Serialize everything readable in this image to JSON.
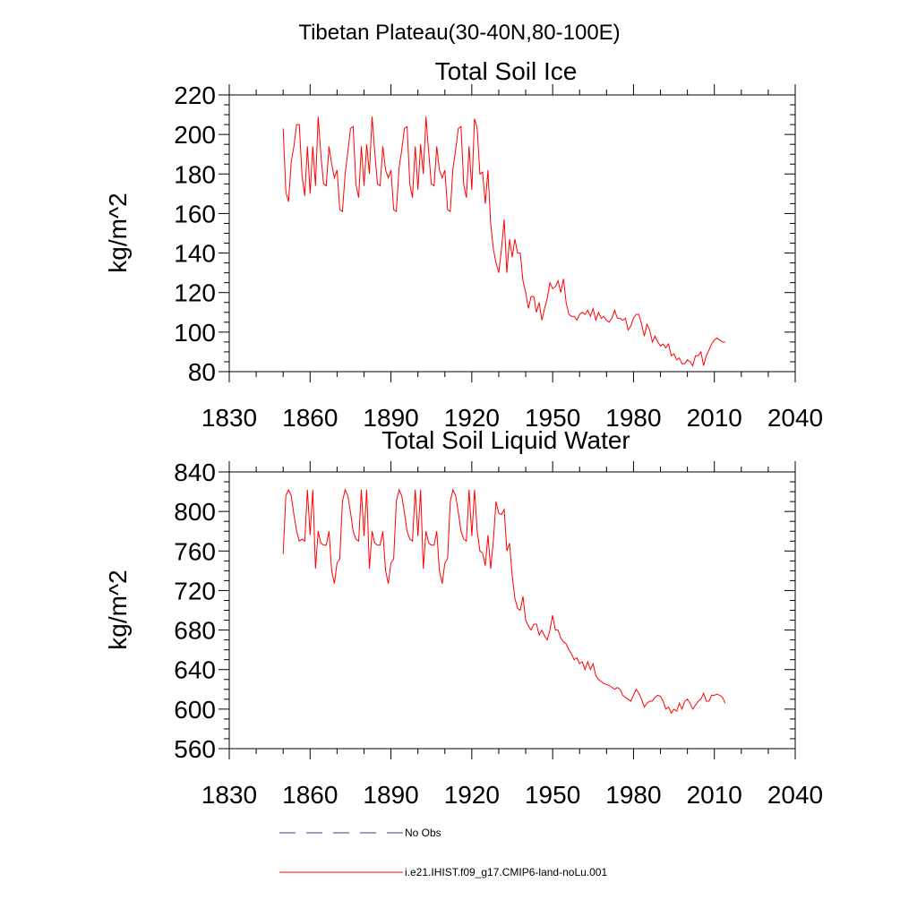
{
  "figure": {
    "main_title": "Tibetan Plateau(30-40N,80-100E)"
  },
  "legend": {
    "placement": "bottom",
    "entries": [
      {
        "label": "No Obs",
        "color": "#3b3b8f",
        "dash": "dashed"
      },
      {
        "label": "i.e21.IHIST.f09_g17.CMIP6-land-noLu.001",
        "color": "#ff0000",
        "dash": "solid"
      }
    ]
  },
  "chart_data": [
    {
      "type": "line",
      "title": "Total Soil Ice",
      "xlabel": "",
      "ylabel": "kg/m^2",
      "xlim": [
        1830,
        2040
      ],
      "ylim": [
        80,
        220
      ],
      "xticks": [
        "1830",
        "1860",
        "1890",
        "1920",
        "1950",
        "1980",
        "2010",
        "2040"
      ],
      "yticks": [
        "80",
        "100",
        "120",
        "140",
        "160",
        "180",
        "200",
        "220"
      ],
      "grid": false,
      "series": [
        {
          "name": "i.e21.IHIST.f09_g17.CMIP6-land-noLu.001",
          "color": "#ff0000",
          "x": [
            1850,
            1851,
            1852,
            1853,
            1854,
            1855,
            1856,
            1857,
            1858,
            1859,
            1860,
            1861,
            1862,
            1863,
            1864,
            1865,
            1866,
            1867,
            1868,
            1869,
            1870,
            1871,
            1872,
            1873,
            1874,
            1875,
            1876,
            1877,
            1878,
            1879,
            1880,
            1881,
            1882,
            1883,
            1884,
            1885,
            1886,
            1887,
            1888,
            1889,
            1890,
            1891,
            1892,
            1893,
            1894,
            1895,
            1896,
            1897,
            1898,
            1899,
            1900,
            1901,
            1902,
            1903,
            1904,
            1905,
            1906,
            1907,
            1908,
            1909,
            1910,
            1911,
            1912,
            1913,
            1914,
            1915,
            1916,
            1917,
            1918,
            1919,
            1920,
            1921,
            1922,
            1923,
            1924,
            1925,
            1926,
            1927,
            1928,
            1929,
            1930,
            1931,
            1932,
            1933,
            1934,
            1935,
            1936,
            1937,
            1938,
            1939,
            1940,
            1941,
            1942,
            1943,
            1944,
            1945,
            1946,
            1947,
            1948,
            1949,
            1950,
            1951,
            1952,
            1953,
            1954,
            1955,
            1956,
            1957,
            1958,
            1959,
            1960,
            1961,
            1962,
            1963,
            1964,
            1965,
            1966,
            1967,
            1968,
            1969,
            1970,
            1971,
            1972,
            1973,
            1974,
            1975,
            1976,
            1977,
            1978,
            1979,
            1980,
            1981,
            1982,
            1983,
            1984,
            1985,
            1986,
            1987,
            1988,
            1989,
            1990,
            1991,
            1992,
            1993,
            1994,
            1995,
            1996,
            1997,
            1998,
            1999,
            2000,
            2001,
            2002,
            2003,
            2004,
            2005,
            2006,
            2007,
            2008,
            2009,
            2010,
            2011,
            2012,
            2013,
            2014
          ],
          "values": [
            203,
            171,
            166,
            186,
            194,
            205,
            205,
            179,
            169,
            194,
            170,
            194,
            174,
            209,
            190,
            175,
            174,
            194,
            185,
            178,
            182,
            162,
            161,
            180,
            191,
            203,
            204,
            175,
            168,
            194,
            174,
            195,
            180,
            209,
            191,
            175,
            174,
            194,
            182,
            178,
            182,
            162,
            161,
            183,
            192,
            203,
            204,
            175,
            168,
            194,
            172,
            195,
            180,
            209,
            191,
            175,
            174,
            194,
            182,
            178,
            182,
            162,
            161,
            183,
            192,
            203,
            204,
            175,
            168,
            194,
            172,
            208,
            203,
            180,
            181,
            165,
            182,
            155,
            142,
            135,
            130,
            142,
            157,
            130,
            147,
            138,
            147,
            140,
            140,
            126,
            120,
            112,
            118,
            118,
            110,
            115,
            106,
            112,
            117,
            125,
            122,
            123,
            126,
            120,
            127,
            115,
            109,
            108,
            108,
            106,
            109,
            110,
            109,
            111,
            108,
            112,
            106,
            110,
            107,
            108,
            106,
            105,
            107,
            111,
            107,
            107,
            106,
            107,
            101,
            103,
            107,
            109,
            109,
            104,
            98,
            104,
            101,
            95,
            98,
            95,
            93,
            94,
            92,
            94,
            88,
            89,
            86,
            87,
            84,
            84,
            86,
            85,
            83,
            88,
            88,
            90,
            83,
            88,
            91,
            94,
            96,
            97,
            96,
            95,
            95
          ]
        }
      ]
    },
    {
      "type": "line",
      "title": "Total Soil Liquid Water",
      "xlabel": "",
      "ylabel": "kg/m^2",
      "xlim": [
        1830,
        2040
      ],
      "ylim": [
        560,
        840
      ],
      "xticks": [
        "1830",
        "1860",
        "1890",
        "1920",
        "1950",
        "1980",
        "2010",
        "2040"
      ],
      "yticks": [
        "560",
        "600",
        "640",
        "680",
        "720",
        "760",
        "800",
        "840"
      ],
      "grid": false,
      "series": [
        {
          "name": "i.e21.IHIST.f09_g17.CMIP6-land-noLu.001",
          "color": "#ff0000",
          "x": [
            1850,
            1851,
            1852,
            1853,
            1854,
            1855,
            1856,
            1857,
            1858,
            1859,
            1860,
            1861,
            1862,
            1863,
            1864,
            1865,
            1866,
            1867,
            1868,
            1869,
            1870,
            1871,
            1872,
            1873,
            1874,
            1875,
            1876,
            1877,
            1878,
            1879,
            1880,
            1881,
            1882,
            1883,
            1884,
            1885,
            1886,
            1887,
            1888,
            1889,
            1890,
            1891,
            1892,
            1893,
            1894,
            1895,
            1896,
            1897,
            1898,
            1899,
            1900,
            1901,
            1902,
            1903,
            1904,
            1905,
            1906,
            1907,
            1908,
            1909,
            1910,
            1911,
            1912,
            1913,
            1914,
            1915,
            1916,
            1917,
            1918,
            1919,
            1920,
            1921,
            1922,
            1923,
            1924,
            1925,
            1926,
            1927,
            1928,
            1929,
            1930,
            1931,
            1932,
            1933,
            1934,
            1935,
            1936,
            1937,
            1938,
            1939,
            1940,
            1941,
            1942,
            1943,
            1944,
            1945,
            1946,
            1947,
            1948,
            1949,
            1950,
            1951,
            1952,
            1953,
            1954,
            1955,
            1956,
            1957,
            1958,
            1959,
            1960,
            1961,
            1962,
            1963,
            1964,
            1965,
            1966,
            1967,
            1968,
            1969,
            1970,
            1971,
            1972,
            1973,
            1974,
            1975,
            1976,
            1977,
            1978,
            1979,
            1980,
            1981,
            1982,
            1983,
            1984,
            1985,
            1986,
            1987,
            1988,
            1989,
            1990,
            1991,
            1992,
            1993,
            1994,
            1995,
            1996,
            1997,
            1998,
            1999,
            2000,
            2001,
            2002,
            2003,
            2004,
            2005,
            2006,
            2007,
            2008,
            2009,
            2010,
            2011,
            2012,
            2013,
            2014
          ],
          "values": [
            757,
            816,
            822,
            816,
            797,
            780,
            770,
            772,
            770,
            822,
            776,
            822,
            742,
            780,
            768,
            766,
            766,
            780,
            740,
            727,
            748,
            752,
            810,
            822,
            816,
            799,
            780,
            772,
            770,
            822,
            775,
            822,
            742,
            780,
            768,
            766,
            766,
            780,
            740,
            727,
            748,
            752,
            810,
            822,
            816,
            799,
            780,
            772,
            770,
            822,
            775,
            822,
            742,
            780,
            768,
            766,
            766,
            780,
            740,
            727,
            748,
            752,
            810,
            822,
            816,
            799,
            780,
            772,
            770,
            822,
            775,
            822,
            780,
            760,
            758,
            745,
            776,
            742,
            770,
            810,
            798,
            797,
            802,
            760,
            768,
            735,
            712,
            702,
            700,
            714,
            690,
            684,
            680,
            686,
            686,
            675,
            680,
            674,
            670,
            680,
            695,
            680,
            680,
            672,
            668,
            666,
            660,
            656,
            650,
            652,
            646,
            648,
            640,
            648,
            640,
            646,
            634,
            630,
            628,
            626,
            625,
            624,
            622,
            620,
            622,
            620,
            614,
            612,
            610,
            608,
            614,
            620,
            616,
            610,
            602,
            606,
            608,
            608,
            612,
            614,
            613,
            608,
            600,
            602,
            596,
            600,
            598,
            606,
            600,
            608,
            610,
            606,
            600,
            604,
            608,
            610,
            616,
            608,
            608,
            614,
            614,
            615,
            614,
            612,
            606
          ]
        }
      ]
    }
  ]
}
